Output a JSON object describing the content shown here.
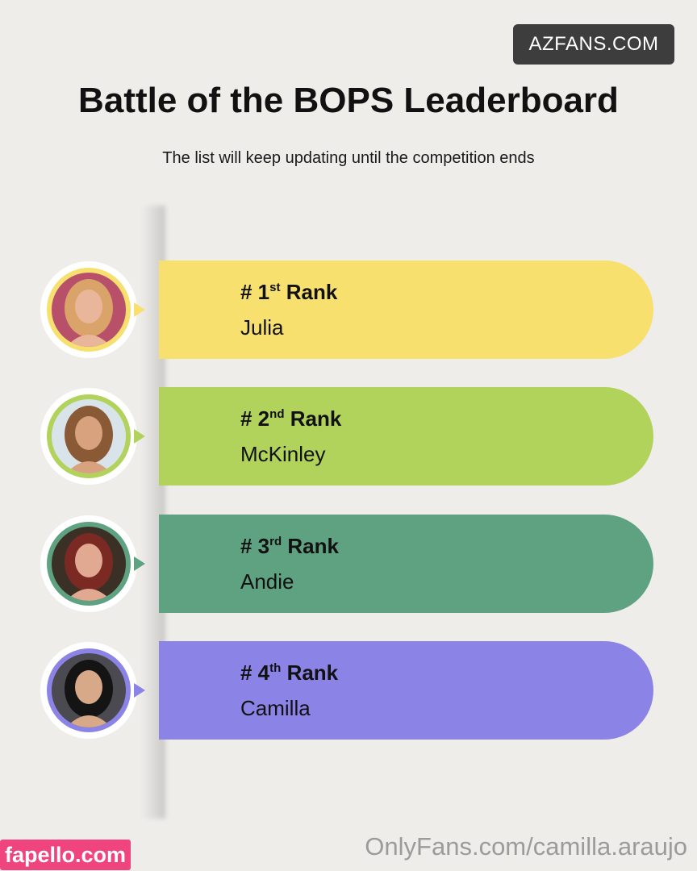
{
  "badge": "AZFANS.COM",
  "title": "Battle of the BOPS Leaderboard",
  "subtitle": "The list will keep updating until the competition ends",
  "entries": [
    {
      "rank_prefix": "# 1",
      "rank_suffix": "st",
      "rank_word": "Rank",
      "name": "Julia",
      "color": "#f7e06e",
      "photo_bg": "#b8506a",
      "photo_skin": "#e9b59b",
      "photo_hair": "#d9a36a",
      "icon": "avatar-photo"
    },
    {
      "rank_prefix": "# 2",
      "rank_suffix": "nd",
      "rank_word": "Rank",
      "name": "McKinley",
      "color": "#b1d25b",
      "photo_bg": "#d8e4ea",
      "photo_skin": "#d9a27e",
      "photo_hair": "#8a5a36",
      "icon": "avatar-photo"
    },
    {
      "rank_prefix": "# 3",
      "rank_suffix": "rd",
      "rank_word": "Rank",
      "name": "Andie",
      "color": "#5fa281",
      "photo_bg": "#3b3026",
      "photo_skin": "#e2a992",
      "photo_hair": "#7a2a22",
      "icon": "avatar-photo"
    },
    {
      "rank_prefix": "# 4",
      "rank_suffix": "th",
      "rank_word": "Rank",
      "name": "Camilla",
      "color": "#8b83e6",
      "photo_bg": "#4a4a50",
      "photo_skin": "#d7a989",
      "photo_hair": "#141414",
      "icon": "avatar-photo"
    }
  ],
  "watermarks": {
    "left": "fapello.com",
    "right": "OnlyFans.com/camilla.araujo"
  }
}
